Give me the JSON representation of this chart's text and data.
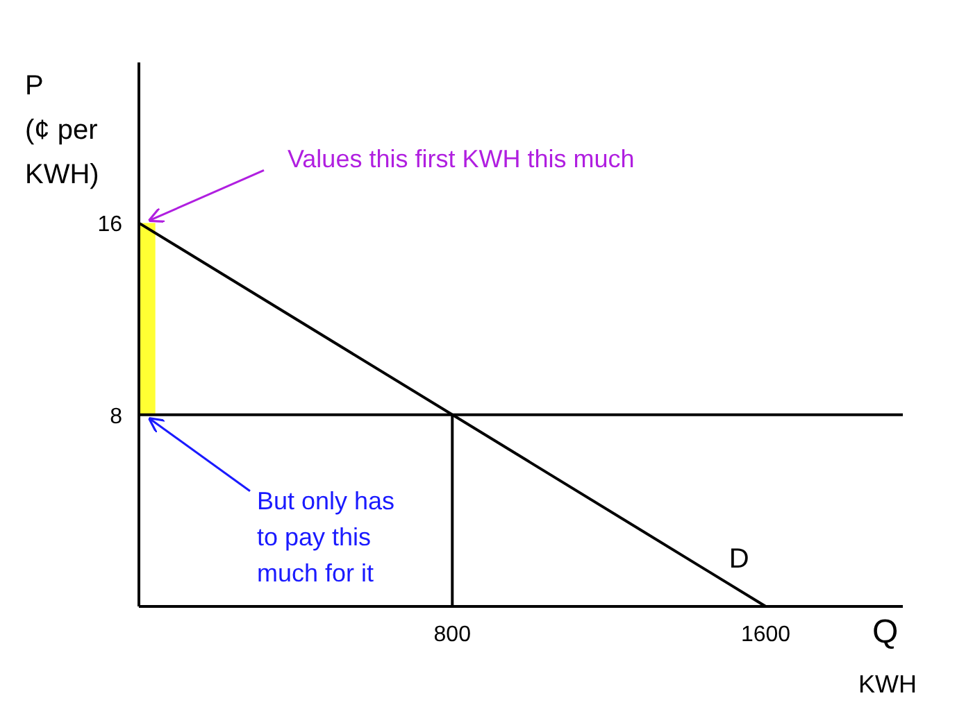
{
  "chart_data": {
    "type": "line",
    "ylabel": "P\n(¢ per\nKWH)",
    "xlabel": "Q\nKWH",
    "xlim": [
      0,
      1950
    ],
    "ylim": [
      0,
      22.7
    ],
    "xticks": [
      800,
      1600
    ],
    "yticks": [
      8,
      16
    ],
    "grid": false,
    "marker": "none",
    "series": [
      {
        "type": "bar",
        "color": "#ffff33",
        "x": [
          21
        ],
        "values": [
          8
        ],
        "base": [
          8
        ]
      },
      {
        "name": "D",
        "color": "#000000",
        "x": [
          0,
          1600
        ],
        "values": [
          16,
          0
        ]
      },
      {
        "color": "#000000",
        "x": [
          0,
          1950
        ],
        "values": [
          8,
          8
        ]
      },
      {
        "color": "#000000",
        "x": [
          800,
          800
        ],
        "values": [
          0,
          8
        ]
      }
    ],
    "annotations": [
      {
        "text": "Values this first KWH this much",
        "x": 0,
        "y": 16
      },
      {
        "text": "But only has\nto pay this\nmuch for it",
        "x": 0,
        "y": 8
      }
    ]
  }
}
